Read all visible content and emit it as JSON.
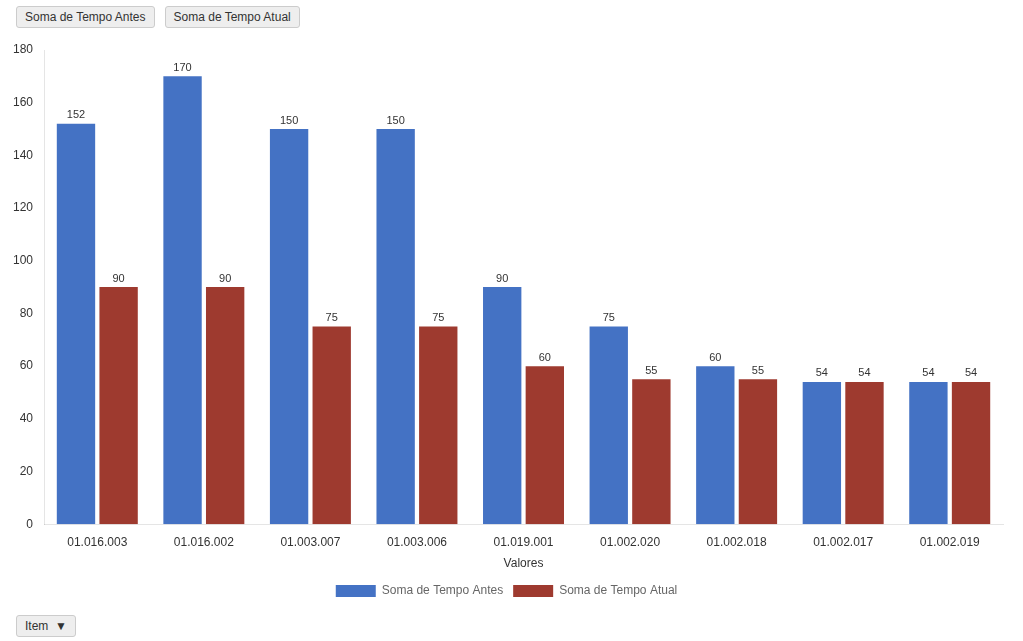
{
  "chart_data": {
    "type": "bar",
    "x_label": "Valores",
    "categories": [
      "01.016.003",
      "01.016.002",
      "01.003.007",
      "01.003.006",
      "01.019.001",
      "01.002.020",
      "01.002.018",
      "01.002.017",
      "01.002.019"
    ],
    "series": [
      {
        "name": "Soma de Tempo Antes",
        "color": "#4472C4",
        "values": [
          152,
          170,
          150,
          150,
          90,
          75,
          60,
          54,
          54
        ]
      },
      {
        "name": "Soma de Tempo Atual",
        "color": "#9E3A2F",
        "values": [
          90,
          90,
          75,
          75,
          60,
          55,
          55,
          54,
          54
        ]
      }
    ],
    "ylim": [
      0,
      180
    ],
    "yticks": [
      0,
      20,
      40,
      60,
      80,
      100,
      120,
      140,
      160,
      180
    ],
    "grid": false,
    "legend": "bottom",
    "data_labels": true,
    "annotations": [
      "Soma de Tempo Antes",
      "Soma de Tempo Atual",
      "Item  ▼"
    ]
  }
}
